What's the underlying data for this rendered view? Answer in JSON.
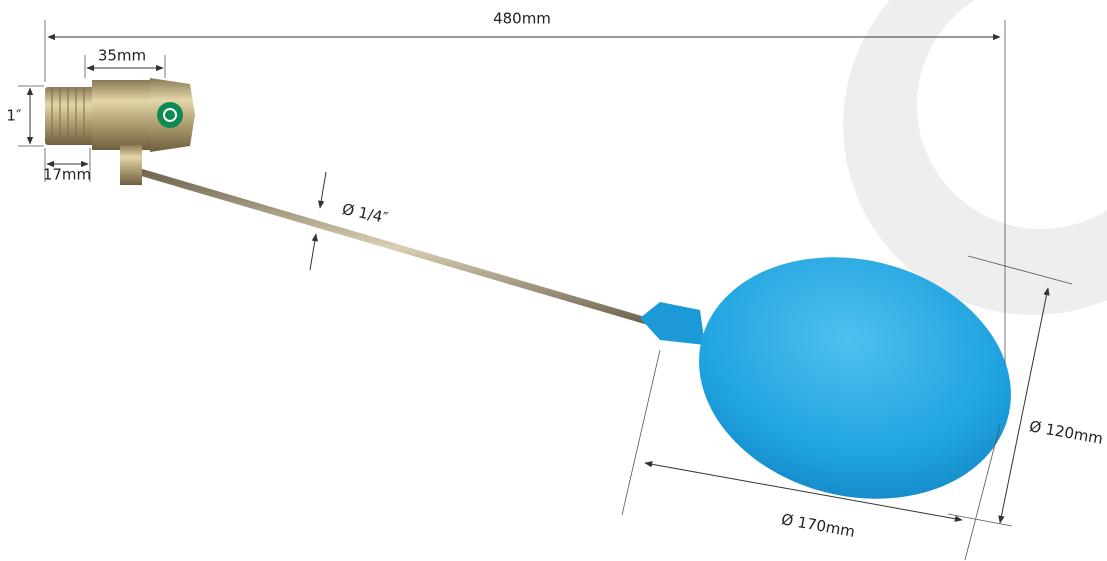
{
  "dimensions": {
    "overall_length": "480mm",
    "body_length": "35mm",
    "thread_size": "1″",
    "thread_length": "17mm",
    "rod_diameter": "Ø 1/4″",
    "ball_height": "Ø 120mm",
    "ball_length": "Ø 170mm"
  }
}
